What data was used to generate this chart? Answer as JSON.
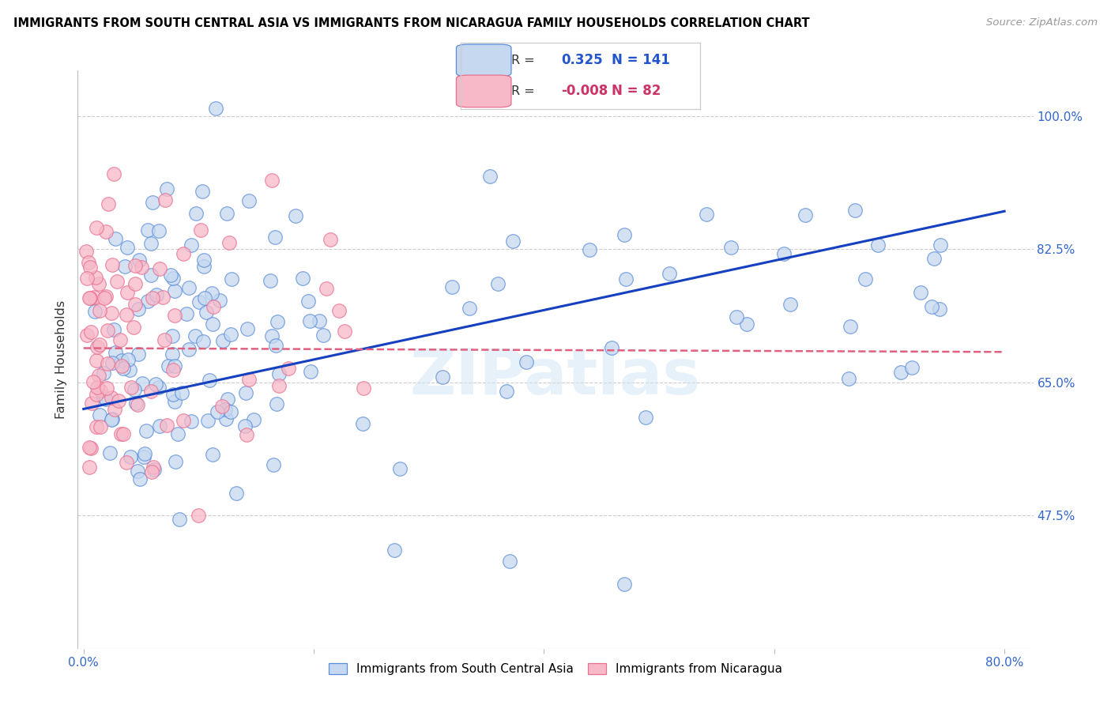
{
  "title": "IMMIGRANTS FROM SOUTH CENTRAL ASIA VS IMMIGRANTS FROM NICARAGUA FAMILY HOUSEHOLDS CORRELATION CHART",
  "source": "Source: ZipAtlas.com",
  "ylabel": "Family Households",
  "ytick_vals": [
    0.475,
    0.65,
    0.825,
    1.0
  ],
  "ytick_labels": [
    "47.5%",
    "65.0%",
    "82.5%",
    "100.0%"
  ],
  "xtick_vals": [
    0.0,
    0.2,
    0.4,
    0.6,
    0.8
  ],
  "xtick_labels": [
    "0.0%",
    "",
    "",
    "",
    "80.0%"
  ],
  "xlim": [
    -0.005,
    0.825
  ],
  "ylim": [
    0.3,
    1.06
  ],
  "color_blue_fill": "#c5d8f0",
  "color_blue_edge": "#5b8dd9",
  "color_pink_fill": "#f7b8c8",
  "color_pink_edge": "#e87090",
  "trendline1_color": "#1540c0",
  "trendline2_color": "#e06080",
  "trendline1": [
    0.0,
    0.8,
    0.615,
    0.875
  ],
  "trendline2": [
    0.0,
    0.8,
    0.695,
    0.69
  ],
  "legend_box_color": "#dddddd",
  "legend_r1_val": "0.325",
  "legend_n1_val": "141",
  "legend_r2_val": "-0.008",
  "legend_n2_val": "82",
  "watermark": "ZIPatlas",
  "watermark_color": "#d0e4f5",
  "scatter1_seed": 42,
  "scatter2_seed": 99
}
